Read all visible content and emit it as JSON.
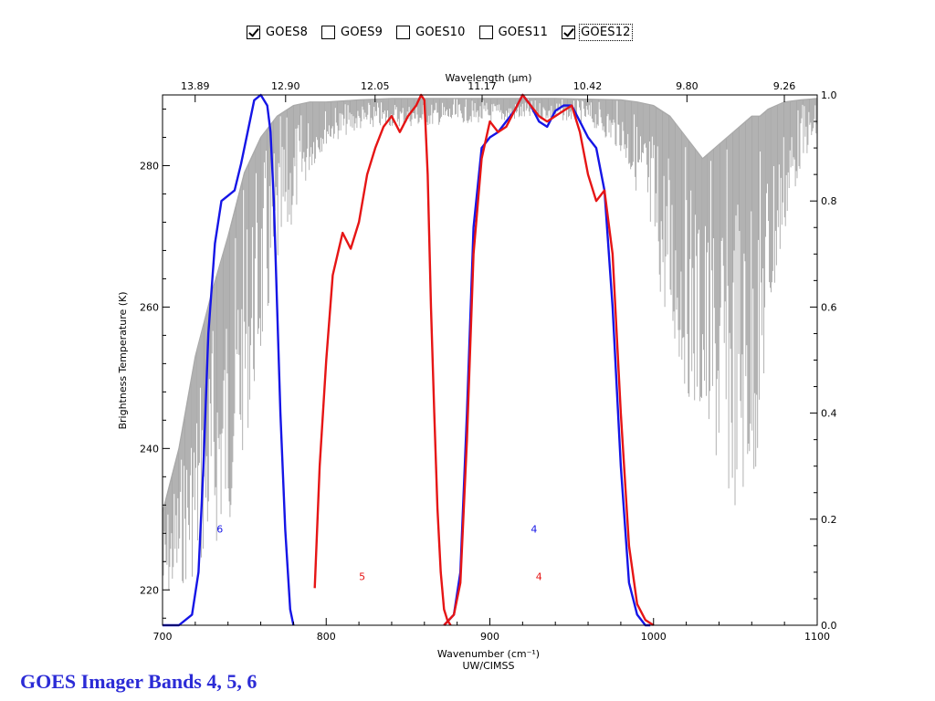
{
  "legend": {
    "items": [
      {
        "label": "GOES8",
        "checked": true
      },
      {
        "label": "GOES9",
        "checked": false
      },
      {
        "label": "GOES10",
        "checked": false
      },
      {
        "label": "GOES11",
        "checked": false
      },
      {
        "label": "GOES12",
        "checked": true,
        "focused": true
      }
    ]
  },
  "slide_title": "GOES Imager Bands 4, 5, 6",
  "chart_data": {
    "type": "line",
    "xlabel": "Wavenumber (cm⁻¹)",
    "xlabel_sub": "UW/CIMSS",
    "top_xlabel": "Wavelength (μm)",
    "ylabel": "Brightness Temperature (K)",
    "xlim": [
      700,
      1100
    ],
    "ylim": [
      215,
      290
    ],
    "y2lim": [
      0,
      1
    ],
    "x_ticks": [
      "700",
      "800",
      "900",
      "1000",
      "1100"
    ],
    "y_ticks": [
      "220",
      "240",
      "260",
      "280"
    ],
    "y2_ticks": [
      "0.0",
      "0.2",
      "0.4",
      "0.6",
      "0.8",
      "1.0"
    ],
    "top_ticks": [
      "13.89",
      "12.90",
      "12.05",
      "11.17",
      "10.42",
      "9.80",
      "9.26"
    ],
    "colors": {
      "spectrum": "#a9a9a9",
      "blue": "#1515e6",
      "red": "#e61515"
    },
    "spectrum_envelope": {
      "x": [
        700,
        710,
        720,
        730,
        740,
        750,
        760,
        770,
        780,
        790,
        800,
        820,
        840,
        860,
        880,
        900,
        920,
        940,
        960,
        980,
        990,
        1000,
        1010,
        1020,
        1030,
        1040,
        1050,
        1060,
        1065,
        1070,
        1080,
        1090,
        1100
      ],
      "upper": [
        231,
        240,
        253,
        262,
        270,
        279,
        284,
        287,
        288.5,
        289,
        289,
        289.3,
        289.5,
        289.5,
        289.5,
        289.5,
        289.5,
        289.5,
        289.4,
        289.3,
        289,
        288.5,
        287,
        284,
        281,
        283,
        285,
        287,
        287,
        288,
        289,
        289.3,
        289.5
      ],
      "lower": [
        218,
        220,
        222,
        225,
        228,
        240,
        252,
        264,
        272,
        279,
        283,
        285,
        285.5,
        285.5,
        286,
        286,
        286.5,
        286.5,
        286,
        282,
        276,
        266,
        255,
        248,
        242,
        235,
        231,
        233,
        240,
        255,
        270,
        280,
        284
      ]
    },
    "series": [
      {
        "color": "blue",
        "x": [
          700,
          710,
          718,
          722,
          725,
          728,
          732,
          736,
          740,
          744,
          748,
          752,
          756,
          760,
          764,
          766,
          768,
          770,
          772,
          775,
          778,
          780
        ],
        "y": [
          0.0,
          0.0,
          0.02,
          0.1,
          0.3,
          0.55,
          0.72,
          0.8,
          0.81,
          0.82,
          0.87,
          0.93,
          0.99,
          1.0,
          0.98,
          0.93,
          0.8,
          0.6,
          0.4,
          0.18,
          0.03,
          0.0
        ]
      },
      {
        "color": "red",
        "x": [
          793,
          796,
          800,
          804,
          807,
          810,
          815,
          820,
          825,
          830,
          835,
          840,
          845,
          850,
          855,
          858,
          860,
          862,
          864,
          866,
          868,
          870,
          872,
          874,
          876
        ],
        "y": [
          0.07,
          0.3,
          0.5,
          0.66,
          0.7,
          0.74,
          0.71,
          0.76,
          0.85,
          0.9,
          0.94,
          0.96,
          0.93,
          0.96,
          0.98,
          1.0,
          0.99,
          0.85,
          0.6,
          0.4,
          0.22,
          0.1,
          0.03,
          0.01,
          0.0
        ]
      },
      {
        "color": "blue",
        "x": [
          872,
          878,
          882,
          886,
          890,
          895,
          900,
          905,
          910,
          915,
          920,
          925,
          930,
          935,
          940,
          945,
          950,
          955,
          960,
          965,
          970,
          975,
          980,
          985,
          990,
          995,
          998
        ],
        "y": [
          0.0,
          0.02,
          0.1,
          0.4,
          0.75,
          0.9,
          0.92,
          0.93,
          0.95,
          0.97,
          1.0,
          0.98,
          0.95,
          0.94,
          0.97,
          0.98,
          0.98,
          0.95,
          0.92,
          0.9,
          0.82,
          0.6,
          0.3,
          0.08,
          0.02,
          0.0,
          0.0
        ]
      },
      {
        "color": "red",
        "x": [
          872,
          878,
          882,
          886,
          890,
          895,
          900,
          905,
          910,
          915,
          920,
          925,
          930,
          935,
          940,
          945,
          950,
          955,
          960,
          965,
          970,
          975,
          980,
          985,
          990,
          995,
          1000
        ],
        "y": [
          0.0,
          0.02,
          0.08,
          0.35,
          0.7,
          0.88,
          0.95,
          0.93,
          0.94,
          0.97,
          1.0,
          0.98,
          0.96,
          0.95,
          0.96,
          0.97,
          0.98,
          0.93,
          0.85,
          0.8,
          0.82,
          0.7,
          0.4,
          0.15,
          0.04,
          0.01,
          0.0
        ]
      }
    ],
    "annotations": [
      {
        "text": "6",
        "x": 735,
        "y": 0.175,
        "color": "blue"
      },
      {
        "text": "5",
        "x": 822,
        "y": 0.085,
        "color": "red"
      },
      {
        "text": "4",
        "x": 927,
        "y": 0.175,
        "color": "blue"
      },
      {
        "text": "4",
        "x": 930,
        "y": 0.085,
        "color": "red"
      }
    ]
  }
}
